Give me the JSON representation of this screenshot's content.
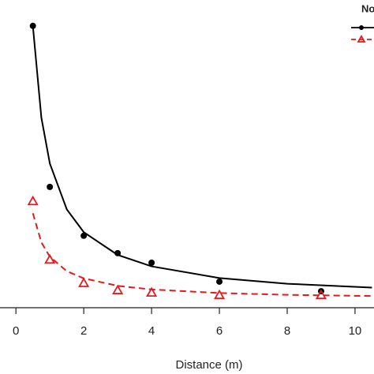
{
  "chart_data": {
    "type": "scatter",
    "x_label": "Distance (m)",
    "legend_title": "No",
    "xlim": [
      -0.47,
      10.56
    ],
    "xticks": [
      0,
      2,
      4,
      6,
      8,
      10
    ],
    "ylim": [
      0,
      100
    ],
    "series": [
      {
        "color": "#000000",
        "marker": "circle",
        "line": "solid",
        "x": [
          0.5,
          1,
          2,
          3,
          4,
          6,
          9
        ],
        "values": [
          94,
          40.3,
          24,
          18.2,
          15,
          8.7,
          5.5
        ],
        "fit_x": [
          0.5,
          0.75,
          1,
          1.5,
          2,
          3,
          4,
          6,
          8,
          10.5
        ],
        "fit_values": [
          93.9,
          63.4,
          48.1,
          32.8,
          25.2,
          17.6,
          13.8,
          9.9,
          8.0,
          6.7
        ]
      },
      {
        "color": "#e41a1c",
        "marker": "triangle",
        "line": "dashed",
        "x": [
          0.5,
          1,
          2,
          3,
          4,
          6,
          9
        ],
        "values": [
          35.5,
          16,
          8.2,
          5.8,
          5,
          4.2,
          4.2
        ],
        "fit_x": [
          0.5,
          0.75,
          1,
          1.5,
          2,
          3,
          4,
          6,
          8,
          10.5
        ],
        "fit_values": [
          31.5,
          21.8,
          17,
          12.2,
          9.8,
          7.3,
          6.1,
          4.9,
          4.3,
          3.9
        ]
      }
    ]
  }
}
